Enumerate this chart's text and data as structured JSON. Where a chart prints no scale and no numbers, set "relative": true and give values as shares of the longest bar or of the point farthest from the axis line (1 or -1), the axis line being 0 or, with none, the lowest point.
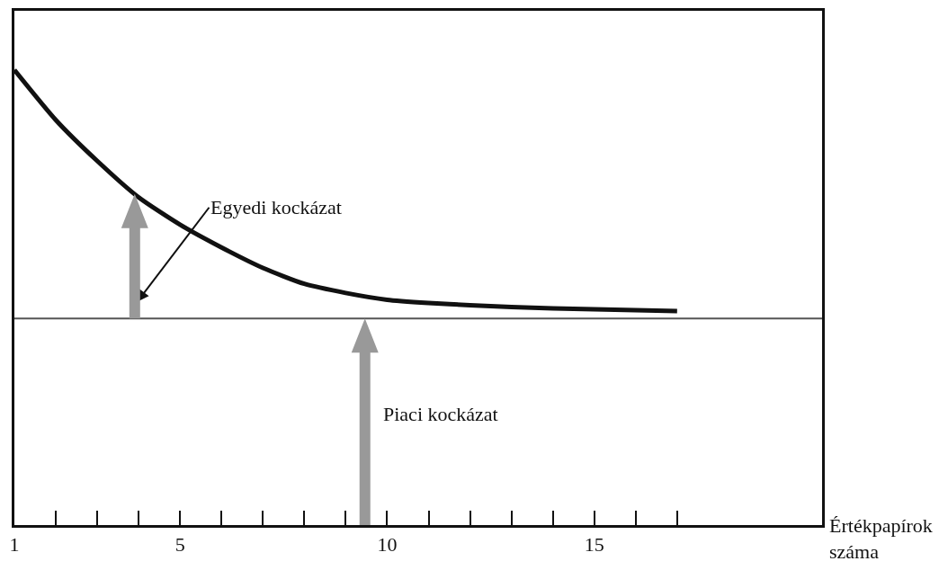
{
  "chart_data": {
    "type": "line",
    "relative": true,
    "xlabel": "Értékpapírok\nszáma",
    "x": [
      1,
      2,
      3,
      4,
      5,
      6,
      7,
      8,
      9,
      10,
      11,
      12,
      13,
      14,
      15,
      16,
      17
    ],
    "series": [
      {
        "color": "#111111",
        "values": [
          1,
          0.89,
          0.8,
          0.72,
          0.66,
          0.61,
          0.565,
          0.53,
          0.51,
          0.495,
          0.488,
          0.483,
          0.479,
          0.476,
          0.474,
          0.472,
          0.47
        ]
      }
    ],
    "xlim": [
      1,
      20.5
    ],
    "xticks": [
      1,
      {
        "value": 2,
        "label": null
      },
      {
        "value": 3,
        "label": null
      },
      {
        "value": 4,
        "label": null
      },
      5,
      {
        "value": 6,
        "label": null
      },
      {
        "value": 7,
        "label": null
      },
      {
        "value": 8,
        "label": null
      },
      {
        "value": 9,
        "label": null
      },
      10,
      {
        "value": 11,
        "label": null
      },
      {
        "value": 12,
        "label": null
      },
      {
        "value": 13,
        "label": null
      },
      {
        "value": 14,
        "label": null
      },
      15,
      {
        "value": 16,
        "label": null
      },
      {
        "value": 17,
        "label": null
      }
    ],
    "ref_lines": [
      {
        "axis": "y",
        "value": 0.454,
        "label": null,
        "color": "#555555"
      }
    ],
    "annotations": [
      "Egyedi kockázat",
      "Piaci kockázat"
    ],
    "tick_labels": "x",
    "grid": false,
    "marker": "none",
    "line_style": "solid"
  }
}
